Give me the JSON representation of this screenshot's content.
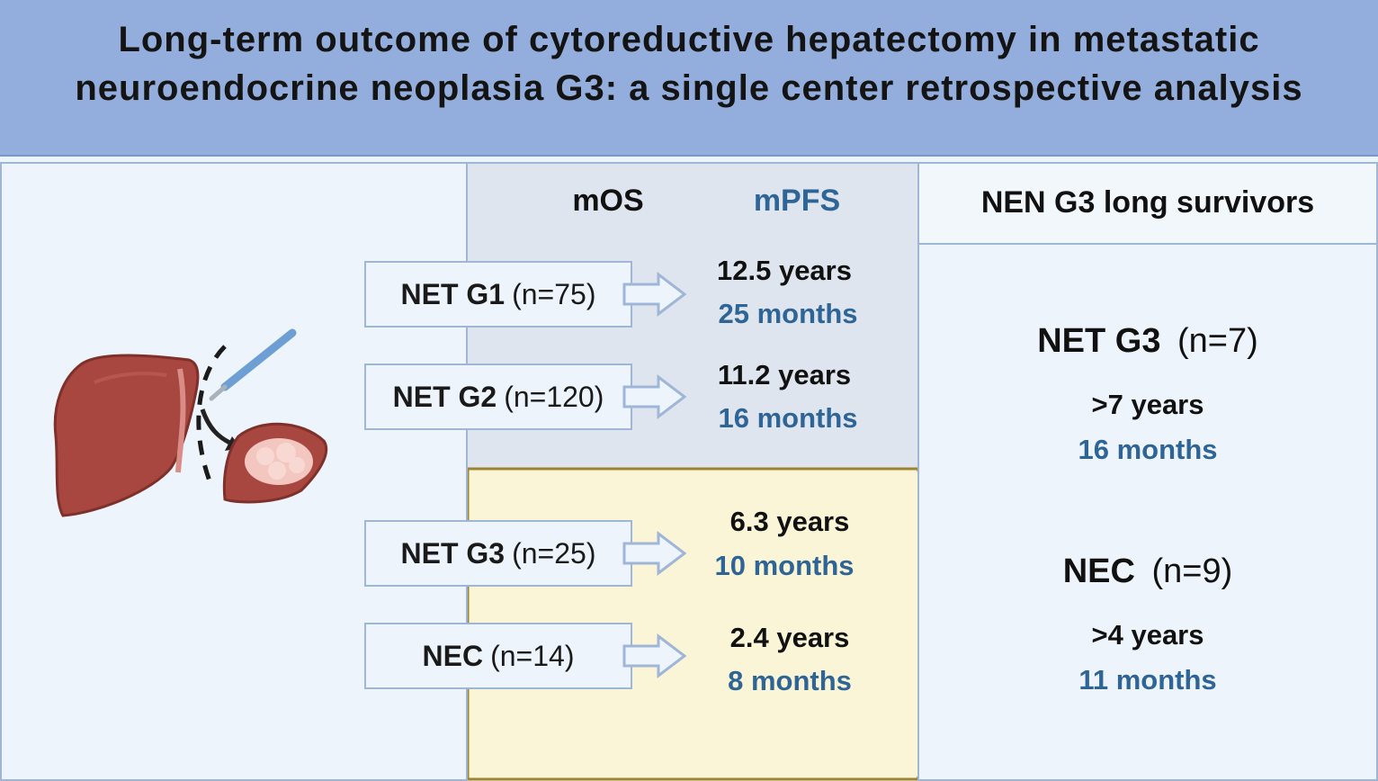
{
  "title": {
    "line1": "Long-term outcome of cytoreductive hepatectomy in metastatic",
    "line2": "neuroendocrine neoplasia G3: a single center retrospective analysis"
  },
  "columns": {
    "os": "mOS",
    "pfs": "mPFS",
    "long_survivors": "NEN G3 long survivors"
  },
  "groups": [
    {
      "name": "NET G1",
      "n": "(n=75)",
      "os": "12.5 years",
      "pfs": "25 months"
    },
    {
      "name": "NET G2",
      "n": "(n=120)",
      "os": "11.2 years",
      "pfs": "16 months"
    },
    {
      "name": "NET G3",
      "n": "(n=25)",
      "os": "6.3 years",
      "pfs": "10 months"
    },
    {
      "name": "NEC",
      "n": "(n=14)",
      "os": "2.4 years",
      "pfs": "8 months"
    }
  ],
  "long_survivors": [
    {
      "name": "NET G3",
      "n": "(n=7)",
      "os": ">7 years",
      "pfs": "16 months"
    },
    {
      "name": "NEC",
      "n": "(n=9)",
      "os": ">4 years",
      "pfs": "11 months"
    }
  ],
  "colors": {
    "banner": "#93aedc",
    "panel_border": "#9fb6d8",
    "gray_area": "#dfe5ee",
    "yellow_area": "#faf5d6",
    "yellow_border": "#9c8430",
    "pfs_text": "#2f6596",
    "liver": "#a8473f"
  },
  "icons": [
    "liver-icon",
    "scalpel-icon",
    "resected-tumor-icon",
    "arrow-icon"
  ]
}
